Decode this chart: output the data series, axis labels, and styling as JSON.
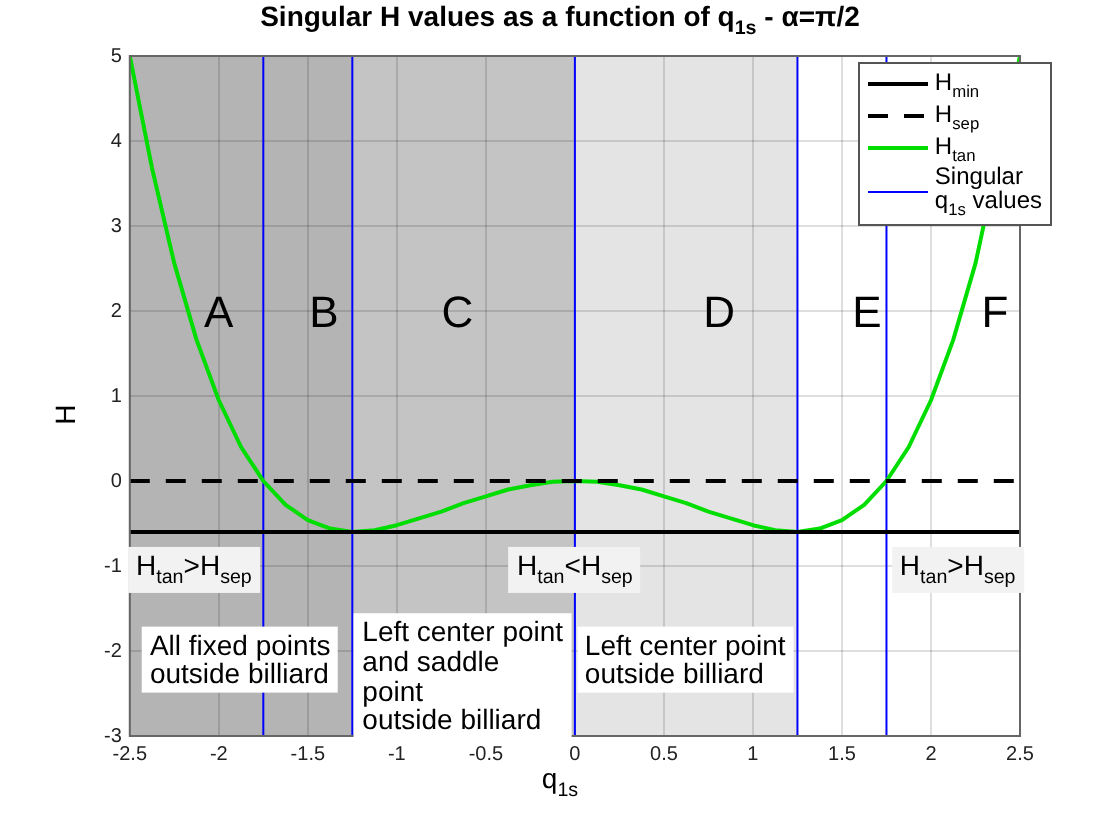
{
  "chart_data": {
    "type": "line",
    "title": "Singular H values as a function of q$_{1s}$ - α=π/2",
    "xlabel": "q$_{1s}$",
    "ylabel": "H",
    "xlim": [
      -2.5,
      2.5
    ],
    "xticks": [
      -2.5,
      -2,
      -1.5,
      -1,
      -0.5,
      0,
      0.5,
      1,
      1.5,
      2,
      2.5
    ],
    "ylim": [
      -3,
      5
    ],
    "yticks": [
      -3,
      -2,
      -1,
      0,
      1,
      2,
      3,
      4,
      5
    ],
    "grid": true,
    "legend": "top right",
    "marker": "none",
    "series": [
      {
        "name": "H$_{min}$",
        "color": "#000000",
        "line_style": "solid",
        "x": [
          -2.5,
          2.5
        ],
        "values": [
          -0.6,
          -0.6
        ]
      },
      {
        "name": "H$_{sep}$",
        "color": "#000000",
        "line_style": "dashed",
        "x": [
          -2.5,
          2.5
        ],
        "values": [
          0,
          0
        ]
      },
      {
        "name": "H$_{tan}$",
        "color": "#00dd00",
        "line_style": "solid",
        "x": [
          -2.5,
          -2.375,
          -2.25,
          -2.125,
          -2,
          -1.875,
          -1.75,
          -1.625,
          -1.5,
          -1.375,
          -1.25,
          -1.125,
          -1,
          -0.875,
          -0.75,
          -0.625,
          -0.5,
          -0.375,
          -0.25,
          -0.125,
          0,
          0.125,
          0.25,
          0.375,
          0.5,
          0.625,
          0.75,
          0.875,
          1,
          1.125,
          1.25,
          1.375,
          1.5,
          1.625,
          1.75,
          1.875,
          2,
          2.125,
          2.25,
          2.5
        ],
        "values": [
          5,
          3.68,
          2.56,
          1.66,
          0.95,
          0.4,
          0,
          -0.28,
          -0.46,
          -0.56,
          -0.6,
          -0.58,
          -0.52,
          -0.44,
          -0.36,
          -0.26,
          -0.18,
          -0.1,
          -0.05,
          -0.01,
          0,
          -0.01,
          -0.05,
          -0.1,
          -0.18,
          -0.26,
          -0.36,
          -0.44,
          -0.52,
          -0.58,
          -0.6,
          -0.56,
          -0.46,
          -0.28,
          0,
          0.4,
          0.95,
          1.66,
          2.56,
          5
        ]
      },
      {
        "name": "Singular\nq$_{1s}$ values",
        "color": "#0000ff",
        "line_style": "solid",
        "x": [
          -1.75,
          -1.75,
          null,
          -1.25,
          -1.25,
          null,
          0,
          0,
          null,
          1.25,
          1.25,
          null,
          1.75,
          1.75
        ],
        "values": [
          5,
          -3,
          null,
          5,
          -3,
          null,
          5,
          -3,
          null,
          5,
          -3,
          null,
          5,
          -3
        ]
      }
    ],
    "bands": [
      {
        "axis": "x",
        "from": -2.5,
        "to": -1.25,
        "color": "#b4b4b4"
      },
      {
        "axis": "x",
        "from": -1.25,
        "to": 0,
        "color": "#c4c4c4"
      },
      {
        "axis": "x",
        "from": 0,
        "to": 1.25,
        "color": "#e4e4e4"
      }
    ],
    "annotations": [
      "A",
      "B",
      "C",
      "D",
      "E",
      "F",
      "H$_{tan}$>H$_{sep}$",
      "H$_{tan}$<H$_{sep}$",
      "H$_{tan}$>H$_{sep}$",
      "All fixed points\noutside billiard",
      "Left center point\nand saddle\npoint\noutside billiard",
      "Left center point\noutside billiard"
    ]
  }
}
